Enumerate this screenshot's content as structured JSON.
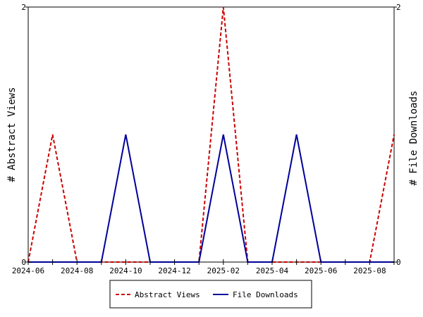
{
  "chart_data": {
    "type": "line",
    "x_dates": [
      "2024-06",
      "2024-07",
      "2024-08",
      "2024-09",
      "2024-10",
      "2024-11",
      "2024-12",
      "2025-01",
      "2025-02",
      "2025-03",
      "2025-04",
      "2025-05",
      "2025-06",
      "2025-07",
      "2025-08",
      "2025-09"
    ],
    "x_tick_labels": [
      "2024-06",
      "2024-08",
      "2024-10",
      "2024-12",
      "2025-02",
      "2025-04",
      "2025-06",
      "2025-08"
    ],
    "series": [
      {
        "name": "Abstract Views",
        "axis": "left",
        "color": "#cc0000",
        "dashed": true,
        "values": [
          0,
          1,
          0,
          0,
          0,
          0,
          0,
          0,
          2,
          0,
          0,
          0,
          0,
          0,
          0,
          1
        ]
      },
      {
        "name": "File Downloads",
        "axis": "right",
        "color": "#000099",
        "dashed": false,
        "values": [
          0,
          0,
          0,
          0,
          1,
          0,
          0,
          0,
          1,
          0,
          0,
          1,
          0,
          0,
          0,
          0
        ]
      }
    ],
    "ylabel_left": "# Abstract Views",
    "ylabel_right": "# File Downloads",
    "ylim_left": [
      0,
      2
    ],
    "ylim_right": [
      0,
      2
    ],
    "y_tick_labels_left": [
      "0",
      "2"
    ],
    "y_tick_labels_right": [
      "0",
      "2"
    ],
    "legend_position": "bottom-center",
    "grid": false
  }
}
